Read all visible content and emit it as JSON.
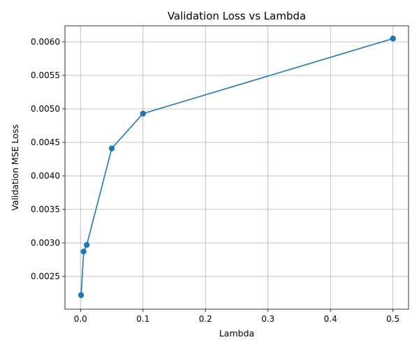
{
  "chart_data": {
    "type": "line",
    "title": "Validation Loss vs Lambda",
    "xlabel": "Lambda",
    "ylabel": "Validation MSE Loss",
    "xlim": [
      -0.0249,
      0.5249
    ],
    "ylim": [
      0.00201,
      0.00624
    ],
    "xticks": [
      0.0,
      0.1,
      0.2,
      0.3,
      0.4,
      0.5
    ],
    "xtick_labels": [
      "0.0",
      "0.1",
      "0.2",
      "0.3",
      "0.4",
      "0.5"
    ],
    "yticks": [
      0.0025,
      0.003,
      0.0035,
      0.004,
      0.0045,
      0.005,
      0.0055,
      0.006
    ],
    "ytick_labels": [
      "0.0025",
      "0.0030",
      "0.0035",
      "0.0040",
      "0.0045",
      "0.0050",
      "0.0055",
      "0.0060"
    ],
    "grid": true,
    "marker": "circle",
    "color": "#1f77b4",
    "series": [
      {
        "x": [
          0.001,
          0.005,
          0.01,
          0.05,
          0.1,
          0.5
        ],
        "y": [
          0.00222,
          0.00287,
          0.00297,
          0.00441,
          0.00493,
          0.00605
        ]
      }
    ]
  }
}
